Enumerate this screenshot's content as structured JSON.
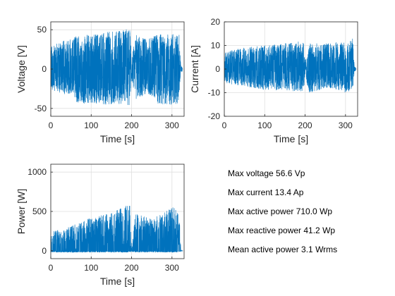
{
  "colors": {
    "line": "#0072BD",
    "grid": "#dfdfdf",
    "axis": "#262626"
  },
  "chart_data": [
    {
      "type": "line",
      "id": "voltage",
      "xlabel": "Time [s]",
      "ylabel": "Voltage [V]",
      "xlim": [
        0,
        330
      ],
      "ylim": [
        -60,
        60
      ],
      "xticks": [
        0,
        100,
        200,
        300
      ],
      "yticks": [
        -50,
        0,
        50
      ],
      "grid": true,
      "envelope": [
        {
          "t": 0,
          "lo": -26,
          "hi": 30
        },
        {
          "t": 30,
          "lo": -32,
          "hi": 36
        },
        {
          "t": 58,
          "lo": -32,
          "hi": 40
        },
        {
          "t": 62,
          "lo": -44,
          "hi": 42
        },
        {
          "t": 100,
          "lo": -45,
          "hi": 44
        },
        {
          "t": 150,
          "lo": -45,
          "hi": 48
        },
        {
          "t": 180,
          "lo": -46,
          "hi": 50
        },
        {
          "t": 196,
          "lo": -46,
          "hi": 53
        },
        {
          "t": 200,
          "lo": -12,
          "hi": 14
        },
        {
          "t": 210,
          "lo": -40,
          "hi": 44
        },
        {
          "t": 240,
          "lo": -30,
          "hi": 38
        },
        {
          "t": 265,
          "lo": -44,
          "hi": 45
        },
        {
          "t": 300,
          "lo": -46,
          "hi": 46
        },
        {
          "t": 318,
          "lo": -44,
          "hi": 45
        },
        {
          "t": 322,
          "lo": -4,
          "hi": 4
        },
        {
          "t": 330,
          "lo": -2,
          "hi": 2
        }
      ]
    },
    {
      "type": "line",
      "id": "current",
      "xlabel": "Time [s]",
      "ylabel": "Current [A]",
      "xlim": [
        0,
        330
      ],
      "ylim": [
        -20,
        20
      ],
      "xticks": [
        0,
        100,
        200,
        300
      ],
      "yticks": [
        -20,
        -10,
        0,
        10,
        20
      ],
      "grid": true,
      "envelope": [
        {
          "t": 0,
          "lo": -6,
          "hi": 7
        },
        {
          "t": 40,
          "lo": -7,
          "hi": 9
        },
        {
          "t": 100,
          "lo": -9,
          "hi": 10
        },
        {
          "t": 150,
          "lo": -9,
          "hi": 11
        },
        {
          "t": 196,
          "lo": -10,
          "hi": 12
        },
        {
          "t": 200,
          "lo": -3,
          "hi": 3
        },
        {
          "t": 210,
          "lo": -10,
          "hi": 11
        },
        {
          "t": 260,
          "lo": -8,
          "hi": 11
        },
        {
          "t": 300,
          "lo": -10,
          "hi": 12
        },
        {
          "t": 318,
          "lo": -9,
          "hi": 13
        },
        {
          "t": 322,
          "lo": -1,
          "hi": 1
        },
        {
          "t": 330,
          "lo": -0.5,
          "hi": 0.5
        }
      ]
    },
    {
      "type": "line",
      "id": "power",
      "xlabel": "Time [s]",
      "ylabel": "Power [W]",
      "xlim": [
        0,
        330
      ],
      "ylim": [
        -100,
        1100
      ],
      "xticks": [
        0,
        100,
        200,
        300
      ],
      "yticks": [
        0,
        500,
        1000
      ],
      "grid": true,
      "envelope": [
        {
          "t": 0,
          "lo": -20,
          "hi": 250
        },
        {
          "t": 40,
          "lo": -20,
          "hi": 300
        },
        {
          "t": 60,
          "lo": -20,
          "hi": 350
        },
        {
          "t": 100,
          "lo": -20,
          "hi": 420
        },
        {
          "t": 150,
          "lo": -20,
          "hi": 480
        },
        {
          "t": 180,
          "lo": -20,
          "hi": 560
        },
        {
          "t": 196,
          "lo": -20,
          "hi": 620
        },
        {
          "t": 200,
          "lo": -10,
          "hi": 40
        },
        {
          "t": 210,
          "lo": -20,
          "hi": 500
        },
        {
          "t": 250,
          "lo": -20,
          "hi": 400
        },
        {
          "t": 300,
          "lo": -20,
          "hi": 550
        },
        {
          "t": 318,
          "lo": -20,
          "hi": 550
        },
        {
          "t": 322,
          "lo": -5,
          "hi": 5
        },
        {
          "t": 330,
          "lo": 0,
          "hi": 2
        }
      ]
    }
  ],
  "stats": [
    "Max voltage 56.6 Vp",
    "Max current 13.4 Ap",
    "Max active power 710.0 Wp",
    "Max reactive power 41.2 Wp",
    "Mean active power 3.1 Wrms"
  ]
}
